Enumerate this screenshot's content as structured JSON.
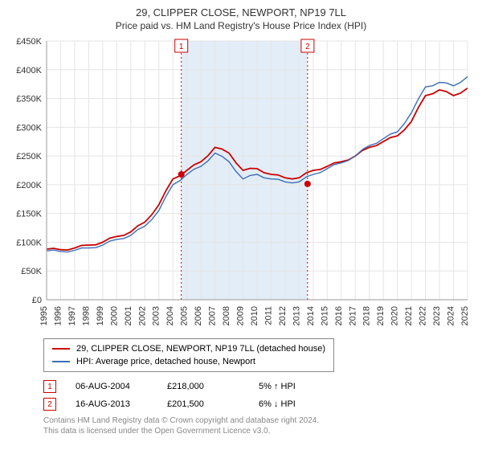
{
  "title": "29, CLIPPER CLOSE, NEWPORT, NP19 7LL",
  "subtitle": "Price paid vs. HM Land Registry's House Price Index (HPI)",
  "chart": {
    "type": "line",
    "background_color": "#ffffff",
    "grid_color": "#e5e5e5",
    "shade_color": "#e3edf7",
    "event_line_color": "#cc0000",
    "ylim": [
      0,
      450000
    ],
    "ytick_step": 50000,
    "ytick_labels": [
      "£0",
      "£50K",
      "£100K",
      "£150K",
      "£200K",
      "£250K",
      "£300K",
      "£350K",
      "£400K",
      "£450K"
    ],
    "x_years": [
      1995,
      1996,
      1997,
      1998,
      1999,
      2000,
      2001,
      2002,
      2003,
      2004,
      2005,
      2006,
      2007,
      2008,
      2009,
      2010,
      2011,
      2012,
      2013,
      2014,
      2015,
      2016,
      2017,
      2018,
      2019,
      2020,
      2021,
      2022,
      2023,
      2024,
      2025
    ],
    "series": [
      {
        "name": "property",
        "color": "#cc0000",
        "width": 1.8,
        "values_by_year": {
          "1995": 88000,
          "1996": 87000,
          "1997": 90000,
          "1998": 95000,
          "1999": 100000,
          "2000": 110000,
          "2001": 118000,
          "2002": 135000,
          "2003": 165000,
          "2004": 210000,
          "2005": 225000,
          "2006": 240000,
          "2007": 265000,
          "2008": 255000,
          "2009": 225000,
          "2010": 228000,
          "2011": 218000,
          "2012": 212000,
          "2013": 212000,
          "2014": 225000,
          "2015": 232000,
          "2016": 240000,
          "2017": 250000,
          "2018": 265000,
          "2019": 275000,
          "2020": 285000,
          "2021": 310000,
          "2022": 355000,
          "2023": 365000,
          "2024": 355000,
          "2025": 368000
        }
      },
      {
        "name": "hpi",
        "color": "#3b6fb6",
        "width": 1.4,
        "values_by_year": {
          "1995": 85000,
          "1996": 84000,
          "1997": 86000,
          "1998": 90000,
          "1999": 95000,
          "2000": 105000,
          "2001": 112000,
          "2002": 128000,
          "2003": 155000,
          "2004": 200000,
          "2005": 218000,
          "2006": 232000,
          "2007": 255000,
          "2008": 240000,
          "2009": 210000,
          "2010": 218000,
          "2011": 210000,
          "2012": 205000,
          "2013": 205000,
          "2014": 218000,
          "2015": 228000,
          "2016": 238000,
          "2017": 250000,
          "2018": 268000,
          "2019": 280000,
          "2020": 292000,
          "2021": 325000,
          "2022": 370000,
          "2023": 378000,
          "2024": 372000,
          "2025": 388000
        }
      }
    ],
    "events": [
      {
        "badge": "1",
        "date": "06-AUG-2004",
        "price": "£218,000",
        "delta": "5% ↑ HPI",
        "year": 2004.6,
        "value": 218000
      },
      {
        "badge": "2",
        "date": "16-AUG-2013",
        "price": "£201,500",
        "delta": "6% ↓ HPI",
        "year": 2013.6,
        "value": 201500
      }
    ]
  },
  "legend": {
    "series1": "29, CLIPPER CLOSE, NEWPORT, NP19 7LL (detached house)",
    "series2": "HPI: Average price, detached house, Newport"
  },
  "footer_line1": "Contains HM Land Registry data © Crown copyright and database right 2024.",
  "footer_line2": "This data is licensed under the Open Government Licence v3.0."
}
